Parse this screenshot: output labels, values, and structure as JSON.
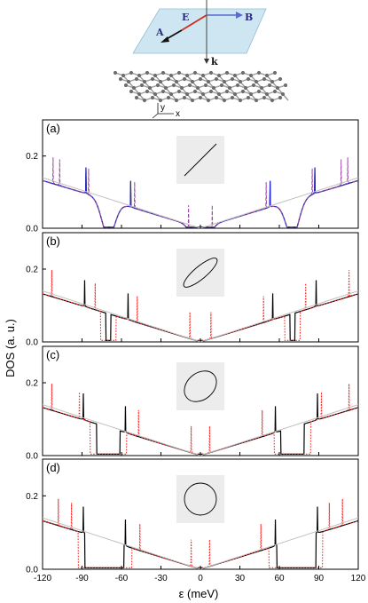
{
  "chart_data": {
    "type": "line",
    "xlabel": "ε (meV)",
    "ylabel": "DOS (a. u.)",
    "xlim": [
      -120,
      120
    ],
    "ylim": [
      0,
      0.3
    ],
    "xticks": [
      -120,
      -90,
      -60,
      -30,
      0,
      30,
      60,
      90,
      120
    ],
    "yticks": [
      0.0,
      0.2
    ],
    "grid": false,
    "legend": "none",
    "colors": {
      "black": "#000000",
      "red_dotted": "#ff2a2a",
      "blue": "#2a2ad8",
      "violet_dashed": "#a04aa8",
      "gray_reference": "#c0c0c0",
      "inset_fill": "#ececec"
    },
    "diagram": {
      "vector_labels": {
        "e_field": "E",
        "b_field": "B",
        "potential": "A",
        "wavevector": "k"
      },
      "axes_labels": {
        "y": "y",
        "x": "x"
      }
    },
    "panels": [
      {
        "label": "(a)",
        "polarization": "linear",
        "series": [
          {
            "style": "black_solid",
            "peaks": [
              -87,
              -53,
              53,
              87
            ],
            "dips": [
              -70,
              0,
              70
            ]
          },
          {
            "style": "blue_solid",
            "peaks": [
              -87,
              -53,
              53,
              87
            ],
            "dips": [
              -70,
              0,
              70
            ]
          },
          {
            "style": "violet_dashed",
            "peaks": [
              -112,
              -107,
              -85,
              -50,
              -9,
              9,
              50,
              85,
              107,
              112
            ],
            "dips": [
              -70,
              0,
              70
            ]
          },
          {
            "style": "gray_reference",
            "x": [
              -120,
              0,
              120
            ],
            "y": [
              0.14,
              0.0,
              0.14
            ]
          }
        ]
      },
      {
        "label": "(b)",
        "polarization": "elliptical",
        "series": [
          {
            "style": "black_solid",
            "peaks": [
              -88,
              -55,
              55,
              88
            ],
            "gaps": [
              [
                -72,
                -68
              ],
              [
                -2,
                2
              ],
              [
                68,
                72
              ]
            ]
          },
          {
            "style": "red_dotted",
            "peaks": [
              -113,
              -80,
              -48,
              -8,
              8,
              48,
              80,
              113
            ],
            "gaps": [
              [
                -76,
                -64
              ],
              [
                -3,
                3
              ],
              [
                64,
                76
              ]
            ]
          },
          {
            "style": "gray_reference",
            "x": [
              -120,
              0,
              120
            ],
            "y": [
              0.14,
              0.0,
              0.14
            ]
          }
        ]
      },
      {
        "label": "(c)",
        "polarization": "elliptical",
        "series": [
          {
            "style": "black_solid",
            "peaks": [
              -89,
              -57,
              57,
              89
            ],
            "gaps": [
              [
                -79,
                -61
              ],
              [
                -2,
                2
              ],
              [
                61,
                79
              ]
            ]
          },
          {
            "style": "red_dotted",
            "peaks": [
              -113,
              -92,
              -47,
              -7,
              7,
              47,
              92,
              113
            ],
            "gaps": [
              [
                -84,
                -56
              ],
              [
                -3,
                3
              ],
              [
                56,
                84
              ]
            ]
          },
          {
            "style": "gray_reference",
            "x": [
              -120,
              0,
              120
            ],
            "y": [
              0.14,
              0.0,
              0.14
            ]
          }
        ]
      },
      {
        "label": "(d)",
        "polarization": "circular",
        "series": [
          {
            "style": "black_solid",
            "peaks": [
              -89,
              -57,
              57,
              89
            ],
            "gaps": [
              [
                -88,
                -58
              ],
              [
                -2,
                2
              ],
              [
                58,
                88
              ]
            ]
          },
          {
            "style": "red_dotted",
            "peaks": [
              -108,
              -98,
              -46,
              -7,
              7,
              46,
              98,
              108
            ],
            "gaps": [
              [
                -93,
                -52
              ],
              [
                -3,
                3
              ],
              [
                52,
                93
              ]
            ]
          },
          {
            "style": "gray_reference",
            "x": [
              -120,
              0,
              120
            ],
            "y": [
              0.14,
              0.0,
              0.14
            ]
          }
        ]
      }
    ]
  }
}
